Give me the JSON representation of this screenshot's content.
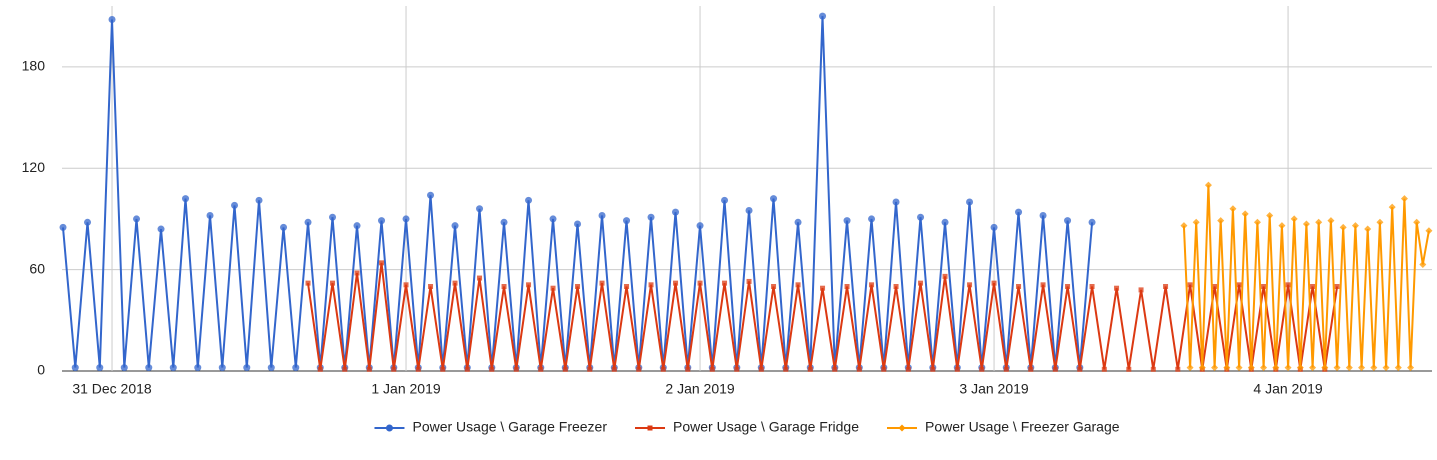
{
  "chart_data": {
    "type": "line",
    "xlim": [
      "2018-12-30 19:55",
      "2019-01-04 11:45"
    ],
    "xticks": [
      {
        "value": "2018-12-31 00:00",
        "label": "31 Dec 2018"
      },
      {
        "value": "2019-01-01 00:00",
        "label": "1 Jan 2019"
      },
      {
        "value": "2019-01-02 00:00",
        "label": "2 Jan 2019"
      },
      {
        "value": "2019-01-03 00:00",
        "label": "3 Jan 2019"
      },
      {
        "value": "2019-01-04 00:00",
        "label": "4 Jan 2019"
      }
    ],
    "ylim": [
      0,
      216
    ],
    "yticks": [
      0,
      60,
      120,
      180
    ],
    "grid": true,
    "legend": "bottom",
    "series": [
      {
        "name": "Power Usage \\ Garage Freezer",
        "color": "#3366cc",
        "marker": "circle",
        "x": [
          "2018-12-30 20:00",
          "2018-12-30 21:00",
          "2018-12-30 22:00",
          "2018-12-30 23:00",
          "2018-12-31 00:00",
          "2018-12-31 01:00",
          "2018-12-31 02:00",
          "2018-12-31 03:00",
          "2018-12-31 04:00",
          "2018-12-31 05:00",
          "2018-12-31 06:00",
          "2018-12-31 07:00",
          "2018-12-31 08:00",
          "2018-12-31 09:00",
          "2018-12-31 10:00",
          "2018-12-31 11:00",
          "2018-12-31 12:00",
          "2018-12-31 13:00",
          "2018-12-31 14:00",
          "2018-12-31 15:00",
          "2018-12-31 16:00",
          "2018-12-31 17:00",
          "2018-12-31 18:00",
          "2018-12-31 19:00",
          "2018-12-31 20:00",
          "2018-12-31 21:00",
          "2018-12-31 22:00",
          "2018-12-31 23:00",
          "2019-01-01 00:00",
          "2019-01-01 01:00",
          "2019-01-01 02:00",
          "2019-01-01 03:00",
          "2019-01-01 04:00",
          "2019-01-01 05:00",
          "2019-01-01 06:00",
          "2019-01-01 07:00",
          "2019-01-01 08:00",
          "2019-01-01 09:00",
          "2019-01-01 10:00",
          "2019-01-01 11:00",
          "2019-01-01 12:00",
          "2019-01-01 13:00",
          "2019-01-01 14:00",
          "2019-01-01 15:00",
          "2019-01-01 16:00",
          "2019-01-01 17:00",
          "2019-01-01 18:00",
          "2019-01-01 19:00",
          "2019-01-01 20:00",
          "2019-01-01 21:00",
          "2019-01-01 22:00",
          "2019-01-01 23:00",
          "2019-01-02 00:00",
          "2019-01-02 01:00",
          "2019-01-02 02:00",
          "2019-01-02 03:00",
          "2019-01-02 04:00",
          "2019-01-02 05:00",
          "2019-01-02 06:00",
          "2019-01-02 07:00",
          "2019-01-02 08:00",
          "2019-01-02 09:00",
          "2019-01-02 10:00",
          "2019-01-02 11:00",
          "2019-01-02 12:00",
          "2019-01-02 13:00",
          "2019-01-02 14:00",
          "2019-01-02 15:00",
          "2019-01-02 16:00",
          "2019-01-02 17:00",
          "2019-01-02 18:00",
          "2019-01-02 19:00",
          "2019-01-02 20:00",
          "2019-01-02 21:00",
          "2019-01-02 22:00",
          "2019-01-02 23:00",
          "2019-01-03 00:00",
          "2019-01-03 01:00",
          "2019-01-03 02:00",
          "2019-01-03 03:00",
          "2019-01-03 04:00",
          "2019-01-03 05:00",
          "2019-01-03 06:00",
          "2019-01-03 07:00",
          "2019-01-03 08:00"
        ],
        "values": [
          85,
          2,
          88,
          2,
          208,
          2,
          90,
          2,
          84,
          2,
          102,
          2,
          92,
          2,
          98,
          2,
          101,
          2,
          85,
          2,
          88,
          2,
          91,
          2,
          86,
          2,
          89,
          2,
          90,
          2,
          104,
          2,
          86,
          2,
          96,
          2,
          88,
          2,
          101,
          2,
          90,
          2,
          87,
          2,
          92,
          2,
          89,
          2,
          91,
          2,
          94,
          2,
          86,
          2,
          101,
          2,
          95,
          2,
          102,
          2,
          88,
          2,
          210,
          2,
          89,
          2,
          90,
          2,
          100,
          2,
          91,
          2,
          88,
          2,
          100,
          2,
          85,
          2,
          94,
          2,
          92,
          2,
          89,
          2,
          88
        ]
      },
      {
        "name": "Power Usage \\ Garage Fridge",
        "color": "#dc3912",
        "marker": "square",
        "x": [
          "2018-12-31 16:00",
          "2018-12-31 17:00",
          "2018-12-31 18:00",
          "2018-12-31 19:00",
          "2018-12-31 20:00",
          "2018-12-31 21:00",
          "2018-12-31 22:00",
          "2018-12-31 23:00",
          "2019-01-01 00:00",
          "2019-01-01 01:00",
          "2019-01-01 02:00",
          "2019-01-01 03:00",
          "2019-01-01 04:00",
          "2019-01-01 05:00",
          "2019-01-01 06:00",
          "2019-01-01 07:00",
          "2019-01-01 08:00",
          "2019-01-01 09:00",
          "2019-01-01 10:00",
          "2019-01-01 11:00",
          "2019-01-01 12:00",
          "2019-01-01 13:00",
          "2019-01-01 14:00",
          "2019-01-01 15:00",
          "2019-01-01 16:00",
          "2019-01-01 17:00",
          "2019-01-01 18:00",
          "2019-01-01 19:00",
          "2019-01-01 20:00",
          "2019-01-01 21:00",
          "2019-01-01 22:00",
          "2019-01-01 23:00",
          "2019-01-02 00:00",
          "2019-01-02 01:00",
          "2019-01-02 02:00",
          "2019-01-02 03:00",
          "2019-01-02 04:00",
          "2019-01-02 05:00",
          "2019-01-02 06:00",
          "2019-01-02 07:00",
          "2019-01-02 08:00",
          "2019-01-02 09:00",
          "2019-01-02 10:00",
          "2019-01-02 11:00",
          "2019-01-02 12:00",
          "2019-01-02 13:00",
          "2019-01-02 14:00",
          "2019-01-02 15:00",
          "2019-01-02 16:00",
          "2019-01-02 17:00",
          "2019-01-02 18:00",
          "2019-01-02 19:00",
          "2019-01-02 20:00",
          "2019-01-02 21:00",
          "2019-01-02 22:00",
          "2019-01-02 23:00",
          "2019-01-03 00:00",
          "2019-01-03 01:00",
          "2019-01-03 02:00",
          "2019-01-03 03:00",
          "2019-01-03 04:00",
          "2019-01-03 05:00",
          "2019-01-03 06:00",
          "2019-01-03 07:00",
          "2019-01-03 08:00",
          "2019-01-03 09:00",
          "2019-01-03 10:00",
          "2019-01-03 11:00",
          "2019-01-03 12:00",
          "2019-01-03 13:00",
          "2019-01-03 14:00",
          "2019-01-03 15:00",
          "2019-01-03 16:00",
          "2019-01-03 17:00",
          "2019-01-03 18:00",
          "2019-01-03 19:00",
          "2019-01-03 20:00",
          "2019-01-03 21:00",
          "2019-01-03 22:00",
          "2019-01-03 23:00",
          "2019-01-04 00:00",
          "2019-01-04 01:00",
          "2019-01-04 02:00",
          "2019-01-04 03:00",
          "2019-01-04 04:00"
        ],
        "values": [
          52,
          1,
          52,
          1,
          58,
          1,
          64,
          1,
          51,
          1,
          50,
          1,
          52,
          1,
          55,
          1,
          50,
          1,
          51,
          1,
          49,
          1,
          50,
          1,
          52,
          1,
          50,
          1,
          51,
          1,
          52,
          1,
          52,
          1,
          52,
          1,
          53,
          1,
          50,
          1,
          51,
          1,
          49,
          1,
          50,
          1,
          51,
          1,
          50,
          1,
          52,
          1,
          56,
          1,
          51,
          1,
          52,
          1,
          50,
          1,
          51,
          1,
          50,
          1,
          50,
          1,
          49,
          1,
          48,
          1,
          50,
          1,
          51,
          1,
          50,
          1,
          51,
          1,
          50,
          1,
          51,
          1,
          50,
          1,
          50
        ]
      },
      {
        "name": "Power Usage \\ Freezer Garage",
        "color": "#ff9900",
        "marker": "diamond",
        "x": [
          "2019-01-03 15:30",
          "2019-01-03 16:00",
          "2019-01-03 16:30",
          "2019-01-03 17:00",
          "2019-01-03 17:30",
          "2019-01-03 18:00",
          "2019-01-03 18:30",
          "2019-01-03 19:00",
          "2019-01-03 19:30",
          "2019-01-03 20:00",
          "2019-01-03 20:30",
          "2019-01-03 21:00",
          "2019-01-03 21:30",
          "2019-01-03 22:00",
          "2019-01-03 22:30",
          "2019-01-03 23:00",
          "2019-01-03 23:30",
          "2019-01-04 00:00",
          "2019-01-04 00:30",
          "2019-01-04 01:00",
          "2019-01-04 01:30",
          "2019-01-04 02:00",
          "2019-01-04 02:30",
          "2019-01-04 03:00",
          "2019-01-04 03:30",
          "2019-01-04 04:00",
          "2019-01-04 04:30",
          "2019-01-04 05:00",
          "2019-01-04 05:30",
          "2019-01-04 06:00",
          "2019-01-04 06:30",
          "2019-01-04 07:00",
          "2019-01-04 07:30",
          "2019-01-04 08:00",
          "2019-01-04 08:30",
          "2019-01-04 09:00",
          "2019-01-04 09:30",
          "2019-01-04 10:00",
          "2019-01-04 10:30",
          "2019-01-04 11:00",
          "2019-01-04 11:30"
        ],
        "values": [
          86,
          2,
          88,
          2,
          110,
          2,
          89,
          2,
          96,
          2,
          93,
          2,
          88,
          2,
          92,
          2,
          86,
          2,
          90,
          2,
          87,
          2,
          88,
          2,
          89,
          2,
          85,
          2,
          86,
          2,
          84,
          2,
          88,
          2,
          97,
          2,
          102,
          2,
          88,
          63,
          83
        ]
      }
    ]
  }
}
